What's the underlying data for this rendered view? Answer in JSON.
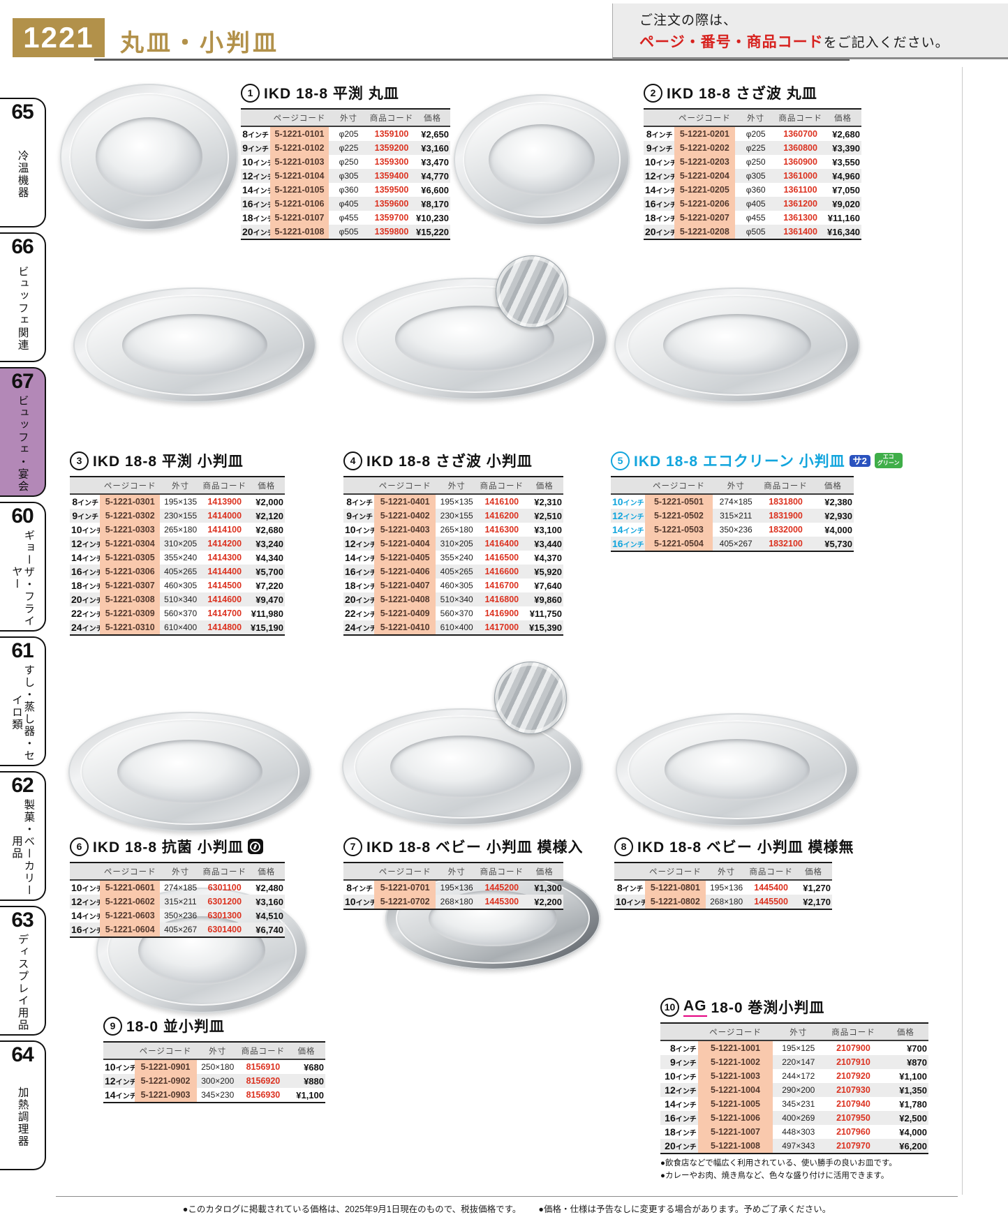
{
  "page": {
    "number": "1221",
    "title": "丸皿・小判皿",
    "order_note_line1": "ご注文の際は、",
    "order_note_red": "ページ・番号・商品コード",
    "order_note_suffix": "をご記入ください。",
    "footer_note1": "●このカタログに掲載されている価格は、2025年9月1日現在のもので、税抜価格です。",
    "footer_note2": "●価格・仕様は予告なしに変更する場合があります。予めご了承ください。"
  },
  "sidebar": {
    "items": [
      {
        "num": "65",
        "label": "冷温機器",
        "active": false
      },
      {
        "num": "66",
        "label": "ビュッフェ関連",
        "active": false
      },
      {
        "num": "67",
        "label": "ビュッフェ・宴会",
        "active": true
      },
      {
        "num": "60",
        "label": "ギョーザ・フライヤー",
        "active": false
      },
      {
        "num": "61",
        "label": "すし・蒸し器・セイロ類",
        "active": false
      },
      {
        "num": "62",
        "label": "製菓・ベーカリー用品",
        "active": false
      },
      {
        "num": "63",
        "label": "ディスプレイ用品",
        "active": false
      },
      {
        "num": "64",
        "label": "加熱調理器",
        "active": false
      }
    ]
  },
  "table_headers": [
    "ページコード",
    "外寸",
    "商品コード",
    "価格"
  ],
  "size_unit": "インチ",
  "colors": {
    "gold": "#b2914a",
    "accent_cyan": "#12a5dd",
    "code_red": "#dc3220",
    "page_code_bg": "#f9c9ad",
    "active_tab_purple": "#b388b7",
    "brand_underline_magenta": "#e4007f",
    "badge_blue": "#2a52be",
    "badge_green": "#3fae49"
  },
  "products": [
    {
      "num": "1",
      "title": "IKD 18-8 平渕 丸皿",
      "rows": [
        [
          "8",
          "5-1221-0101",
          "φ205",
          "1359100",
          "¥2,650"
        ],
        [
          "9",
          "5-1221-0102",
          "φ225",
          "1359200",
          "¥3,160"
        ],
        [
          "10",
          "5-1221-0103",
          "φ250",
          "1359300",
          "¥3,470"
        ],
        [
          "12",
          "5-1221-0104",
          "φ305",
          "1359400",
          "¥4,770"
        ],
        [
          "14",
          "5-1221-0105",
          "φ360",
          "1359500",
          "¥6,600"
        ],
        [
          "16",
          "5-1221-0106",
          "φ405",
          "1359600",
          "¥8,170"
        ],
        [
          "18",
          "5-1221-0107",
          "φ455",
          "1359700",
          "¥10,230"
        ],
        [
          "20",
          "5-1221-0108",
          "φ505",
          "1359800",
          "¥15,220"
        ]
      ]
    },
    {
      "num": "2",
      "title": "IKD 18-8 さざ波 丸皿",
      "rows": [
        [
          "8",
          "5-1221-0201",
          "φ205",
          "1360700",
          "¥2,680"
        ],
        [
          "9",
          "5-1221-0202",
          "φ225",
          "1360800",
          "¥3,390"
        ],
        [
          "10",
          "5-1221-0203",
          "φ250",
          "1360900",
          "¥3,550"
        ],
        [
          "12",
          "5-1221-0204",
          "φ305",
          "1361000",
          "¥4,960"
        ],
        [
          "14",
          "5-1221-0205",
          "φ360",
          "1361100",
          "¥7,050"
        ],
        [
          "16",
          "5-1221-0206",
          "φ405",
          "1361200",
          "¥9,020"
        ],
        [
          "18",
          "5-1221-0207",
          "φ455",
          "1361300",
          "¥11,160"
        ],
        [
          "20",
          "5-1221-0208",
          "φ505",
          "1361400",
          "¥16,340"
        ]
      ]
    },
    {
      "num": "3",
      "title": "IKD 18-8 平渕 小判皿",
      "rows": [
        [
          "8",
          "5-1221-0301",
          "195×135",
          "1413900",
          "¥2,000"
        ],
        [
          "9",
          "5-1221-0302",
          "230×155",
          "1414000",
          "¥2,120"
        ],
        [
          "10",
          "5-1221-0303",
          "265×180",
          "1414100",
          "¥2,680"
        ],
        [
          "12",
          "5-1221-0304",
          "310×205",
          "1414200",
          "¥3,240"
        ],
        [
          "14",
          "5-1221-0305",
          "355×240",
          "1414300",
          "¥4,340"
        ],
        [
          "16",
          "5-1221-0306",
          "405×265",
          "1414400",
          "¥5,700"
        ],
        [
          "18",
          "5-1221-0307",
          "460×305",
          "1414500",
          "¥7,220"
        ],
        [
          "20",
          "5-1221-0308",
          "510×340",
          "1414600",
          "¥9,470"
        ],
        [
          "22",
          "5-1221-0309",
          "560×370",
          "1414700",
          "¥11,980"
        ],
        [
          "24",
          "5-1221-0310",
          "610×400",
          "1414800",
          "¥15,190"
        ]
      ]
    },
    {
      "num": "4",
      "title": "IKD 18-8 さざ波 小判皿",
      "rows": [
        [
          "8",
          "5-1221-0401",
          "195×135",
          "1416100",
          "¥2,310"
        ],
        [
          "9",
          "5-1221-0402",
          "230×155",
          "1416200",
          "¥2,510"
        ],
        [
          "10",
          "5-1221-0403",
          "265×180",
          "1416300",
          "¥3,100"
        ],
        [
          "12",
          "5-1221-0404",
          "310×205",
          "1416400",
          "¥3,440"
        ],
        [
          "14",
          "5-1221-0405",
          "355×240",
          "1416500",
          "¥4,370"
        ],
        [
          "16",
          "5-1221-0406",
          "405×265",
          "1416600",
          "¥5,920"
        ],
        [
          "18",
          "5-1221-0407",
          "460×305",
          "1416700",
          "¥7,640"
        ],
        [
          "20",
          "5-1221-0408",
          "510×340",
          "1416800",
          "¥9,860"
        ],
        [
          "22",
          "5-1221-0409",
          "560×370",
          "1416900",
          "¥11,750"
        ],
        [
          "24",
          "5-1221-0410",
          "610×400",
          "1417000",
          "¥15,390"
        ]
      ]
    },
    {
      "num": "5",
      "title": "IKD 18-8 エコクリーン 小判皿",
      "accent": true,
      "badges": {
        "sa": "サ2",
        "eco_line1": "エコ",
        "eco_line2": "グリーン"
      },
      "rows": [
        [
          "10",
          "5-1221-0501",
          "274×185",
          "1831800",
          "¥2,380"
        ],
        [
          "12",
          "5-1221-0502",
          "315×211",
          "1831900",
          "¥2,930"
        ],
        [
          "14",
          "5-1221-0503",
          "350×236",
          "1832000",
          "¥4,000"
        ],
        [
          "16",
          "5-1221-0504",
          "405×267",
          "1832100",
          "¥5,730"
        ]
      ]
    },
    {
      "num": "6",
      "title": "IKD 18-8 抗菌 小判皿",
      "icon": "antibacterial",
      "rows": [
        [
          "10",
          "5-1221-0601",
          "274×185",
          "6301100",
          "¥2,480"
        ],
        [
          "12",
          "5-1221-0602",
          "315×211",
          "6301200",
          "¥3,160"
        ],
        [
          "14",
          "5-1221-0603",
          "350×236",
          "6301300",
          "¥4,510"
        ],
        [
          "16",
          "5-1221-0604",
          "405×267",
          "6301400",
          "¥6,740"
        ]
      ]
    },
    {
      "num": "7",
      "title": "IKD 18-8 ベビー 小判皿 模様入",
      "rows": [
        [
          "8",
          "5-1221-0701",
          "195×136",
          "1445200",
          "¥1,300"
        ],
        [
          "10",
          "5-1221-0702",
          "268×180",
          "1445300",
          "¥2,200"
        ]
      ]
    },
    {
      "num": "8",
      "title": "IKD 18-8 ベビー 小判皿 模様無",
      "rows": [
        [
          "8",
          "5-1221-0801",
          "195×136",
          "1445400",
          "¥1,270"
        ],
        [
          "10",
          "5-1221-0802",
          "268×180",
          "1445500",
          "¥2,170"
        ]
      ]
    },
    {
      "num": "9",
      "title": "18-0 並小判皿",
      "rows": [
        [
          "10",
          "5-1221-0901",
          "250×180",
          "8156910",
          "¥680"
        ],
        [
          "12",
          "5-1221-0902",
          "300×200",
          "8156920",
          "¥880"
        ],
        [
          "14",
          "5-1221-0903",
          "345×230",
          "8156930",
          "¥1,100"
        ]
      ]
    },
    {
      "num": "10",
      "title_prefix": "AG",
      "title": "18-0 巻渕小判皿",
      "rows": [
        [
          "8",
          "5-1221-1001",
          "195×125",
          "2107900",
          "¥700"
        ],
        [
          "9",
          "5-1221-1002",
          "220×147",
          "2107910",
          "¥870"
        ],
        [
          "10",
          "5-1221-1003",
          "244×172",
          "2107920",
          "¥1,100"
        ],
        [
          "12",
          "5-1221-1004",
          "290×200",
          "2107930",
          "¥1,350"
        ],
        [
          "14",
          "5-1221-1005",
          "345×231",
          "2107940",
          "¥1,780"
        ],
        [
          "16",
          "5-1221-1006",
          "400×269",
          "2107950",
          "¥2,500"
        ],
        [
          "18",
          "5-1221-1007",
          "448×303",
          "2107960",
          "¥4,000"
        ],
        [
          "20",
          "5-1221-1008",
          "497×343",
          "2107970",
          "¥6,200"
        ]
      ],
      "notes": [
        "●飲食店などで幅広く利用されている、使い勝手の良いお皿です。",
        "●カレーやお肉、焼き鳥など、色々な盛り付けに活用できます。"
      ]
    }
  ]
}
